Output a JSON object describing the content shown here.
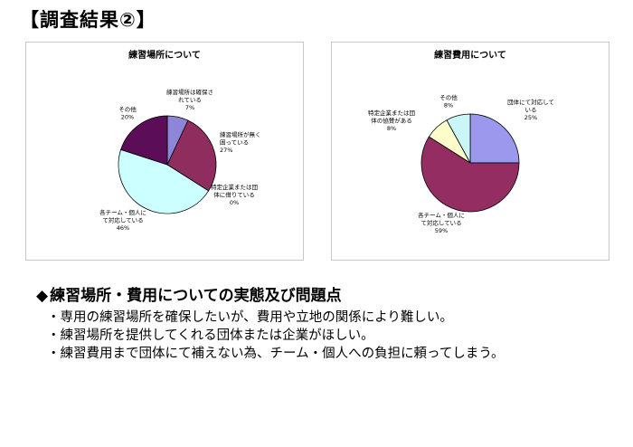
{
  "page": {
    "title": "【調査結果②】"
  },
  "chart_data": [
    {
      "type": "pie",
      "title": "練習場所について",
      "slices": [
        {
          "label_lines": [
            "練習場所は確保さ",
            "れている"
          ],
          "pct_label": "7%",
          "value": 7,
          "color": "#8e84d8"
        },
        {
          "label_lines": [
            "練習場所が無く",
            "困っている"
          ],
          "pct_label": "27%",
          "value": 27,
          "color": "#8f2d5e"
        },
        {
          "label_lines": [
            "特定企業または団",
            "体に借りている"
          ],
          "pct_label": "0%",
          "value": 0.0001,
          "color": "#fafacc"
        },
        {
          "label_lines": [
            "各チーム・個人に",
            "て対応している"
          ],
          "pct_label": "46%",
          "value": 46,
          "color": "#ccffff"
        },
        {
          "label_lines": [
            "その他"
          ],
          "pct_label": "20%",
          "value": 20,
          "color": "#5b0d58"
        }
      ]
    },
    {
      "type": "pie",
      "title": "練習費用について",
      "slices": [
        {
          "label_lines": [
            "団体にて対応して",
            "いる"
          ],
          "pct_label": "25%",
          "value": 25,
          "color": "#9b98ee"
        },
        {
          "label_lines": [
            "各チーム・個人に",
            "て対応している"
          ],
          "pct_label": "59%",
          "value": 59,
          "color": "#932d62"
        },
        {
          "label_lines": [
            "特定企業または団",
            "体の協賛がある"
          ],
          "pct_label": "8%",
          "value": 8,
          "color": "#fdfccb"
        },
        {
          "label_lines": [
            "その他"
          ],
          "pct_label": "8%",
          "value": 8,
          "color": "#cbf6f8"
        }
      ]
    }
  ],
  "summary": {
    "diamond": "◆",
    "heading": "練習場所・費用についての実態及び問題点",
    "bullets": [
      "・専用の練習場所を確保したいが、費用や立地の関係により難しい。",
      "・練習場所を提供してくれる団体または企業がほしい。",
      "・練習費用まで団体にて補えない為、チーム・個人への負担に頼ってしまう。"
    ]
  }
}
